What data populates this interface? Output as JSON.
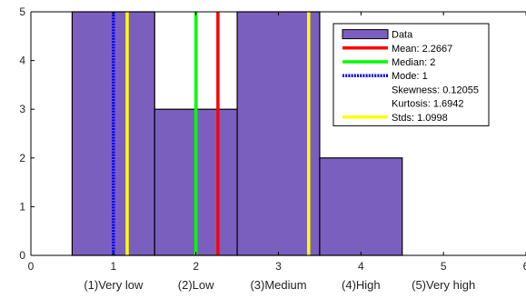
{
  "chart_data": {
    "type": "bar",
    "subtype": "histogram",
    "title": "",
    "xlabel": "",
    "ylabel": "",
    "xlim": [
      0,
      6
    ],
    "ylim": [
      0,
      5
    ],
    "x_ticks": [
      "0",
      "1",
      "2",
      "3",
      "4",
      "5",
      "6"
    ],
    "y_ticks": [
      "0",
      "1",
      "2",
      "3",
      "4",
      "5"
    ],
    "category_labels": [
      "(1)Very low",
      "(2)Low",
      "(3)Medium",
      "(4)High",
      "(5)Very high"
    ],
    "bins": [
      {
        "x_start": 0.5,
        "x_end": 1.5,
        "count": 5
      },
      {
        "x_start": 1.5,
        "x_end": 2.5,
        "count": 3
      },
      {
        "x_start": 2.5,
        "x_end": 3.5,
        "count": 5
      },
      {
        "x_start": 3.5,
        "x_end": 4.5,
        "count": 2
      },
      {
        "x_start": 4.5,
        "x_end": 5.5,
        "count": 0
      }
    ],
    "vertical_lines": [
      {
        "key": "mode",
        "x": 1,
        "color": "#0000ff",
        "style": "dotted"
      },
      {
        "key": "std_low",
        "x": 1.1669,
        "color": "#ffff00",
        "style": "solid"
      },
      {
        "key": "median",
        "x": 2,
        "color": "#00ff00",
        "style": "solid"
      },
      {
        "key": "mean",
        "x": 2.2667,
        "color": "#ff0000",
        "style": "solid"
      },
      {
        "key": "std_high",
        "x": 3.3665,
        "color": "#ffff00",
        "style": "solid"
      }
    ],
    "legend": {
      "placement": "top-right",
      "entries": [
        {
          "label": "Data",
          "swatch": "bar",
          "color": "#7b5fbf"
        },
        {
          "label": "Mean: 2.2667",
          "swatch": "line",
          "color": "#ff0000",
          "style": "solid"
        },
        {
          "label": "Median: 2",
          "swatch": "line",
          "color": "#00ff00",
          "style": "solid"
        },
        {
          "label": "Mode: 1",
          "swatch": "line",
          "color": "#0000ff",
          "style": "dotted"
        },
        {
          "label": "Skewness: 0.12055",
          "swatch": "none"
        },
        {
          "label": "Kurtosis: 1.6942",
          "swatch": "none"
        },
        {
          "label": "Stds: 1.0998",
          "swatch": "line",
          "color": "#ffff00",
          "style": "solid"
        }
      ]
    },
    "grid": false,
    "colors": {
      "bar_fill": "#7b5fbf",
      "bar_edge": "#000000"
    }
  }
}
